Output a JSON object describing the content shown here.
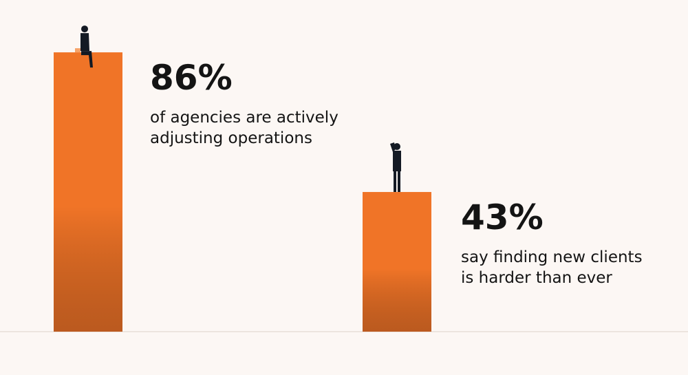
{
  "chart_data": {
    "type": "bar",
    "categories": [
      [
        "of agencies are actively",
        "adjusting operations"
      ],
      [
        "say finding new clients",
        "is harder than ever"
      ]
    ],
    "values": [
      86,
      43
    ],
    "value_labels": [
      "86%",
      "43%"
    ],
    "color": "#f07427"
  }
}
